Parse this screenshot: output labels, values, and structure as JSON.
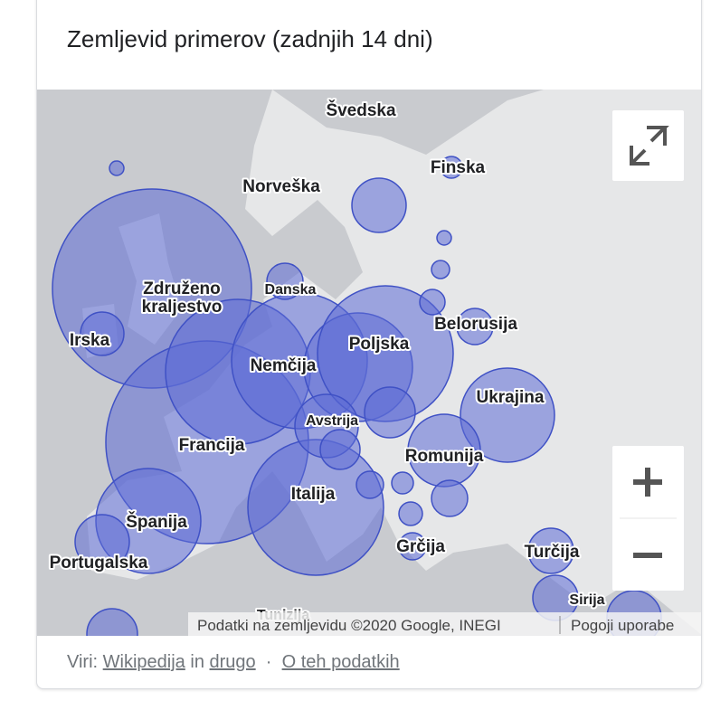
{
  "header": {
    "title": "Zemljevid primerov (zadnjih 14 dni)"
  },
  "map": {
    "labels": [
      {
        "text": "Švedska"
      },
      {
        "text": "Finska"
      },
      {
        "text": "Norveška"
      },
      {
        "text": "Danska"
      },
      {
        "lines": [
          "Združeno",
          "kraljestvo"
        ]
      },
      {
        "text": "Irska"
      },
      {
        "text": "Belorusija"
      },
      {
        "text": "Poljska"
      },
      {
        "text": "Nemčija"
      },
      {
        "text": "Ukrajina"
      },
      {
        "text": "Avstrija"
      },
      {
        "text": "Francija"
      },
      {
        "text": "Romunija"
      },
      {
        "text": "Italija"
      },
      {
        "text": "Španija"
      },
      {
        "text": "Portugalska"
      },
      {
        "text": "Grčija"
      },
      {
        "text": "Turčija"
      },
      {
        "text": "Sirija"
      },
      {
        "text": "Tunizija"
      }
    ],
    "attribution": "Podatki na zemljevidu ©2020 Google, INEGI",
    "terms": "Pogoji uporabe"
  },
  "footer": {
    "sources_label": "Viri:",
    "link1": "Wikipedija",
    "conjunction": "in",
    "link2": "drugo",
    "separator": "·",
    "about": "O teh podatkih"
  }
}
